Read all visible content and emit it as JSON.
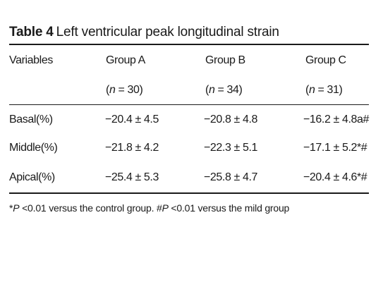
{
  "caption": {
    "label": "Table 4",
    "title": "Left ventricular peak longitudinal strain"
  },
  "columns": {
    "variables": "Variables",
    "group_a": "Group A",
    "group_b": "Group B",
    "group_c": "Group C"
  },
  "sample_sizes": {
    "group_a": {
      "n_label": "n",
      "value": "= 30)"
    },
    "group_b": {
      "n_label": "n",
      "value": "= 34)"
    },
    "group_c": {
      "n_label": "n",
      "value": "= 31)"
    }
  },
  "rows": [
    {
      "variable": "Basal(%)",
      "group_a": "−20.4 ± 4.5",
      "group_b": "−20.8 ± 4.8",
      "group_c": "−16.2 ± 4.8a#"
    },
    {
      "variable": "Middle(%)",
      "group_a": "−21.8 ± 4.2",
      "group_b": "−22.3 ± 5.1",
      "group_c": "−17.1 ± 5.2*#"
    },
    {
      "variable": "Apical(%)",
      "group_a": "−25.4 ± 5.3",
      "group_b": "−25.8 ± 4.7",
      "group_c": "−20.4 ± 4.6*#"
    }
  ],
  "footnote": {
    "star": "*",
    "p1": "P",
    "text1": " <0.01 versus the control group. #",
    "p2": "P",
    "text2": " <0.01 versus the mild group"
  }
}
